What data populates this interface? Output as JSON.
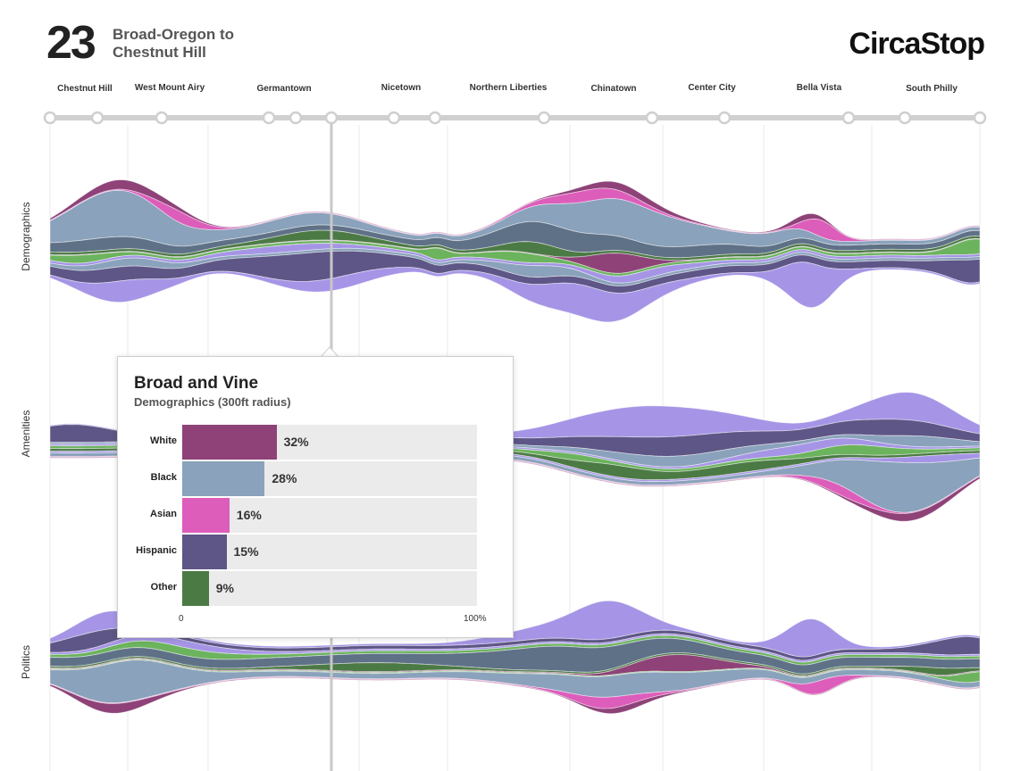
{
  "header": {
    "route_number": "23",
    "route_name_line1": "Broad-Oregon to",
    "route_name_line2": "Chestnut Hill",
    "brand": "CircaStop"
  },
  "stops": {
    "labels": [
      "Chestnut Hill",
      "West Mount Airy",
      "Germantown",
      "Nicetown",
      "Northern Liberties",
      "Chinatown",
      "Center City",
      "Bella Vista",
      "South Philly"
    ]
  },
  "rows": [
    "Demographics",
    "Amenities",
    "Politics"
  ],
  "colors": {
    "white": "#8e4278",
    "black": "#8aa2bb",
    "asian": "#dd5dbb",
    "hispanic": "#5e5686",
    "other": "#4c7a45",
    "lightgreen": "#6cb35e",
    "lavender": "#a695e6",
    "slate": "#5f7187"
  },
  "tooltip": {
    "title": "Broad and Vine",
    "subtitle": "Demographics (300ft radius)",
    "axis_min": "0",
    "axis_max": "100%"
  },
  "chart_data": {
    "type": "bar",
    "categories": [
      "White",
      "Black",
      "Asian",
      "Hispanic",
      "Other"
    ],
    "values": [
      32,
      28,
      16,
      15,
      9
    ],
    "value_labels": [
      "32%",
      "28%",
      "16%",
      "15%",
      "9%"
    ],
    "xlim": [
      0,
      100
    ]
  }
}
